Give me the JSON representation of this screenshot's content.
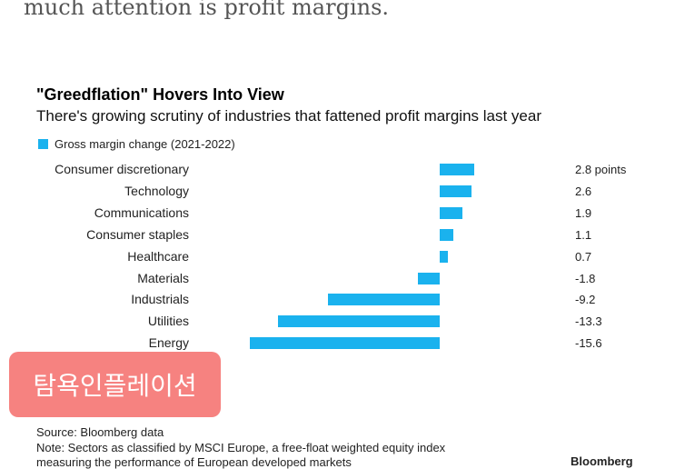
{
  "intro_text": "much attention is profit margins.",
  "colors": {
    "bar": "#1ab2ee",
    "tag_background": "#f68280",
    "tag_text": "#ffffff"
  },
  "chart_data": {
    "type": "bar",
    "orientation": "horizontal",
    "title": "\"Greedflation\" Hovers Into View",
    "subtitle": "There's growing scrutiny of industries that fattened profit margins last year",
    "legend": "Gross margin change (2021-2022)",
    "legend_placement": "top-left",
    "categories": [
      "Consumer discretionary",
      "Technology",
      "Communications",
      "Consumer staples",
      "Healthcare",
      "Materials",
      "Industrials",
      "Utilities",
      "Energy"
    ],
    "values": [
      2.8,
      2.6,
      1.9,
      1.1,
      0.7,
      -1.8,
      -9.2,
      -13.3,
      -15.6
    ],
    "value_labels": [
      "2.8 points",
      "2.6",
      "1.9",
      "1.1",
      "0.7",
      "-1.8",
      "-9.2",
      "-13.3",
      "-15.6"
    ],
    "xlim": [
      -15.6,
      2.8
    ],
    "grid": false
  },
  "overlay_tag": "탐욕인플레이션",
  "footer": {
    "source": "Source: Bloomberg data",
    "note_line1": "Note: Sectors as classified by MSCI Europe, a free-float weighted equity index",
    "note_line2": "measuring the performance of European developed markets",
    "brand": "Bloomberg"
  }
}
